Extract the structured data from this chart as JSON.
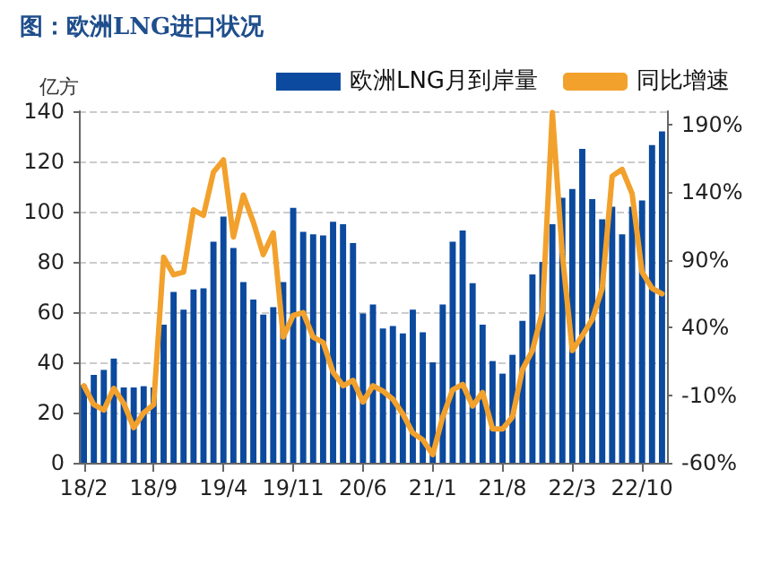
{
  "chart_data": {
    "type": "bar",
    "title": "图：欧洲LNG进口状况",
    "ylabel": "亿方",
    "categories": [
      "18/2",
      null,
      null,
      null,
      null,
      null,
      null,
      "18/9",
      null,
      null,
      null,
      null,
      null,
      null,
      "19/4",
      null,
      null,
      null,
      null,
      null,
      null,
      "19/11",
      null,
      null,
      null,
      null,
      null,
      null,
      "20/6",
      null,
      null,
      null,
      null,
      null,
      null,
      "21/1",
      null,
      null,
      null,
      null,
      null,
      null,
      "21/8",
      null,
      null,
      null,
      null,
      null,
      null,
      "22/3",
      null,
      null,
      null,
      null,
      null,
      null,
      "22/10",
      null,
      null
    ],
    "series": [
      {
        "name": "欧洲LNG月到岸量",
        "color": "#0b4a9e",
        "values": [
          31,
          35,
          37,
          41.5,
          30,
          30,
          30.5,
          30,
          55,
          68,
          61,
          69,
          69.5,
          88,
          98,
          85.5,
          72,
          65,
          59,
          62,
          72,
          101.5,
          92,
          91,
          90.5,
          96,
          95,
          87.5,
          59.5,
          63,
          53.5,
          54.5,
          51.5,
          61,
          52,
          40,
          63,
          88,
          92.5,
          71.5,
          55,
          40.5,
          35.5,
          43,
          56.5,
          75,
          80,
          95,
          105.5,
          109,
          125,
          105,
          97,
          102,
          91,
          102,
          104.5,
          126.5,
          132
        ]
      },
      {
        "name": "同比增速",
        "type": "line",
        "axis": "y2",
        "color": "#f2a12c",
        "values": [
          -3,
          -17,
          -21,
          -5,
          -16,
          -34,
          -23,
          -17,
          92,
          79,
          81,
          127,
          123,
          155,
          164,
          107,
          138,
          118,
          94,
          110,
          33,
          49,
          51,
          33,
          29,
          7,
          -3,
          1,
          -15,
          -3,
          -7,
          -13,
          -24,
          -38,
          -43,
          -54,
          -26,
          -6,
          -2,
          -18,
          -8,
          -35,
          -35,
          -26,
          9,
          23,
          52,
          199,
          94,
          23,
          34,
          46,
          69,
          152,
          157,
          139,
          81,
          69,
          65
        ]
      }
    ],
    "ylim": [
      0,
      140
    ],
    "yticks": [
      0,
      20,
      40,
      60,
      80,
      100,
      120,
      140
    ],
    "y2lim": [
      -60,
      200
    ],
    "y2ticks": [
      {
        "value": -60,
        "label": "-60%"
      },
      {
        "value": -10,
        "label": "-10%"
      },
      {
        "value": 40,
        "label": "40%"
      },
      {
        "value": 90,
        "label": "90%"
      },
      {
        "value": 140,
        "label": "140%"
      },
      {
        "value": 190,
        "label": "190%"
      }
    ],
    "grid": "y",
    "legend": "top right",
    "marker": "none",
    "line_style": "solid"
  }
}
